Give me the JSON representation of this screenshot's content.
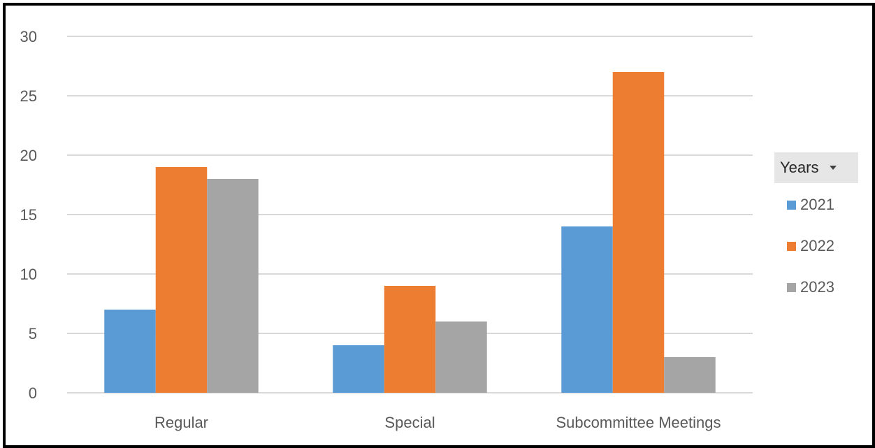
{
  "chart_data": {
    "type": "bar",
    "categories": [
      "Regular",
      "Special",
      "Subcommittee Meetings"
    ],
    "series": [
      {
        "name": "2021",
        "values": [
          7,
          4,
          14
        ],
        "color": "#5b9bd5"
      },
      {
        "name": "2022",
        "values": [
          19,
          9,
          27
        ],
        "color": "#ed7d31"
      },
      {
        "name": "2023",
        "values": [
          18,
          6,
          3
        ],
        "color": "#a5a5a5"
      }
    ],
    "ylim": [
      0,
      30
    ],
    "yticks": [
      0,
      5,
      10,
      15,
      20,
      25,
      30
    ],
    "grid": true,
    "legend": {
      "title": "Years",
      "placement": "right"
    }
  }
}
